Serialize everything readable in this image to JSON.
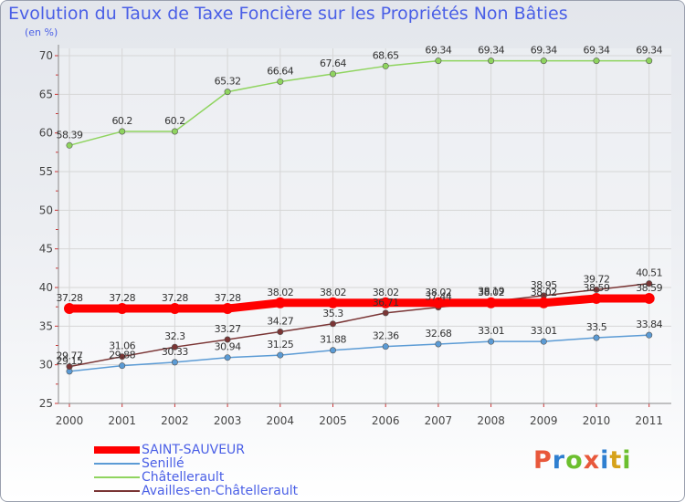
{
  "title": "Evolution du Taux de Taxe Foncière sur les Propriétés Non Bâties",
  "subtitle": "(en %)",
  "logo": {
    "text": "Proxiti",
    "colors": [
      "#e8583b",
      "#2f7fd0",
      "#6cbf2e",
      "#e8583b",
      "#2f7fd0",
      "#d6a21a",
      "#6cbf2e"
    ]
  },
  "chart_data": {
    "type": "line",
    "x": [
      "2000",
      "2001",
      "2002",
      "2003",
      "2004",
      "2005",
      "2006",
      "2007",
      "2008",
      "2009",
      "2010",
      "2011"
    ],
    "ylim": [
      25,
      70
    ],
    "yticks": [
      25,
      30,
      35,
      40,
      45,
      50,
      55,
      60,
      65,
      70
    ],
    "grid": true,
    "legend_position": "bottom-left",
    "series": [
      {
        "name": "SAINT-SAUVEUR",
        "color": "#ff0000",
        "width": 9,
        "values": [
          37.28,
          37.28,
          37.28,
          37.28,
          38.02,
          38.02,
          38.02,
          38.02,
          38.02,
          38.02,
          38.59,
          38.59
        ],
        "labels": [
          "37.28",
          "37.28",
          "37.28",
          "37.28",
          "38.02",
          "38.02",
          "38.02",
          "38.02",
          "38.02",
          "38.02",
          "38.59",
          "38.59"
        ]
      },
      {
        "name": "Senillé",
        "color": "#5b9bd5",
        "width": 1.5,
        "values": [
          29.15,
          29.88,
          30.33,
          30.94,
          31.25,
          31.88,
          32.36,
          32.68,
          33.01,
          33.01,
          33.5,
          33.84
        ],
        "labels": [
          "29.15",
          "29.88",
          "30.33",
          "30.94",
          "31.25",
          "31.88",
          "32.36",
          "32.68",
          "33.01",
          "33.01",
          "33.5",
          "33.84"
        ]
      },
      {
        "name": "Châtellerault",
        "color": "#8fd45f",
        "width": 1.5,
        "values": [
          58.39,
          60.2,
          60.2,
          65.32,
          66.64,
          67.64,
          68.65,
          69.34,
          69.34,
          69.34,
          69.34,
          69.34
        ],
        "labels": [
          "58.39",
          "60.2",
          "60.2",
          "65.32",
          "66.64",
          "67.64",
          "68.65",
          "69.34",
          "69.34",
          "69.34",
          "69.34",
          "69.34"
        ]
      },
      {
        "name": "Availles-en-Châtellerault",
        "color": "#7a3535",
        "width": 1.5,
        "values": [
          29.77,
          31.06,
          32.3,
          33.27,
          34.27,
          35.3,
          36.71,
          37.44,
          38.19,
          38.95,
          39.72,
          40.51
        ],
        "labels": [
          "29.77",
          "31.06",
          "32.3",
          "33.27",
          "34.27",
          "35.3",
          "36.71",
          "37.44",
          "38.19",
          "38.95",
          "39.72",
          "40.51"
        ]
      }
    ]
  }
}
